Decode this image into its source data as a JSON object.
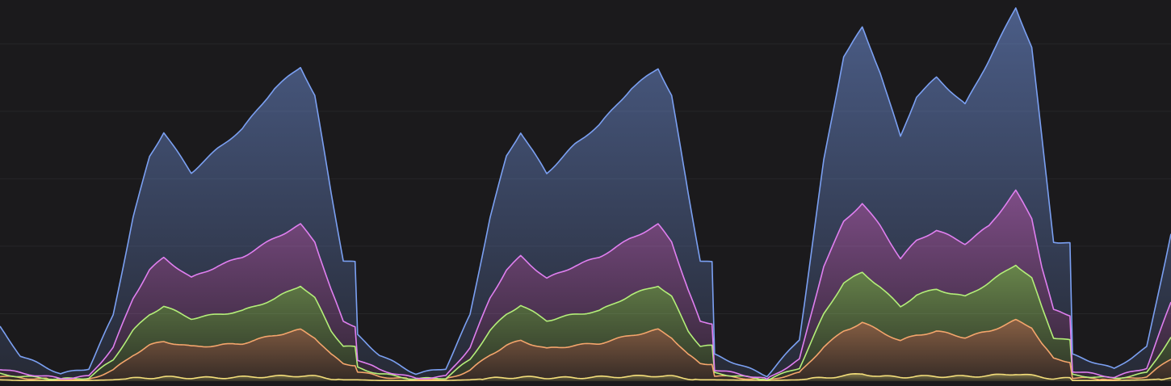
{
  "chart_data": {
    "type": "area",
    "stacked": true,
    "title": "",
    "xlabel": "",
    "ylabel": "",
    "grid": true,
    "legend": "none",
    "xlim": [
      0,
      3.281
    ],
    "ylim": [
      0,
      565
    ],
    "y_gridlines": [
      100,
      200,
      300,
      400,
      500
    ],
    "background": "#1b1a1c",
    "gridline_color": "#262628",
    "x": [
      0,
      0.057,
      0.17,
      0.249,
      0.317,
      0.373,
      0.419,
      0.459,
      0.536,
      0.611,
      0.679,
      0.769,
      0.842,
      0.882,
      0.928,
      0.962,
      0.995,
      1.002,
      1.063,
      1.165,
      1.249,
      1.317,
      1.373,
      1.419,
      1.459,
      1.532,
      1.611,
      1.679,
      1.769,
      1.844,
      1.882,
      1.928,
      1.962,
      1.995,
      2.002,
      2.149,
      2.24,
      2.308,
      2.364,
      2.416,
      2.466,
      2.523,
      2.568,
      2.624,
      2.704,
      2.771,
      2.846,
      2.891,
      2.919,
      2.952,
      2.998,
      3.005,
      3.122,
      3.213,
      3.281
    ],
    "series": [
      {
        "color": "#f3de7a",
        "values": [
          2,
          1,
          1,
          1,
          2,
          4,
          5,
          6,
          5,
          5,
          6,
          7,
          8,
          7,
          4,
          2,
          2,
          2,
          1,
          1,
          1,
          2,
          4,
          5,
          6,
          5,
          5,
          6,
          7,
          8,
          7,
          4,
          2,
          2,
          2,
          1,
          2,
          5,
          8,
          11,
          7,
          6,
          7,
          7,
          7,
          8,
          11,
          8,
          6,
          4,
          4,
          1,
          1,
          2,
          4
        ]
      },
      {
        "color": "#f4a56c",
        "values": [
          5,
          4,
          1,
          2,
          14,
          35,
          48,
          53,
          46,
          48,
          50,
          61,
          68,
          58,
          35,
          24,
          22,
          12,
          6,
          1,
          2,
          14,
          35,
          48,
          54,
          43,
          48,
          50,
          61,
          68,
          58,
          35,
          24,
          24,
          6,
          1,
          10,
          46,
          66,
          76,
          67,
          54,
          61,
          67,
          58,
          66,
          79,
          72,
          50,
          29,
          25,
          4,
          1,
          5,
          29
        ]
      },
      {
        "color": "#b4ef79",
        "values": [
          4,
          2,
          1,
          2,
          16,
          36,
          46,
          52,
          42,
          46,
          48,
          54,
          66,
          58,
          36,
          26,
          26,
          6,
          4,
          1,
          2,
          16,
          36,
          46,
          53,
          42,
          46,
          48,
          60,
          66,
          60,
          36,
          26,
          26,
          4,
          0,
          8,
          48,
          72,
          74,
          66,
          50,
          60,
          62,
          60,
          72,
          83,
          72,
          54,
          32,
          31,
          4,
          2,
          5,
          32
        ]
      },
      {
        "color": "#e07ff0",
        "values": [
          7,
          5,
          1,
          2,
          18,
          48,
          66,
          72,
          60,
          72,
          80,
          90,
          90,
          84,
          60,
          36,
          32,
          12,
          6,
          1,
          2,
          18,
          48,
          66,
          72,
          62,
          72,
          80,
          84,
          90,
          82,
          60,
          36,
          34,
          5,
          1,
          12,
          72,
          90,
          103,
          90,
          72,
          80,
          88,
          79,
          84,
          109,
          90,
          60,
          40,
          38,
          6,
          2,
          8,
          52
        ]
      },
      {
        "color": "#7ba0f2",
        "values": [
          62,
          26,
          7,
          12,
          48,
          120,
          168,
          186,
          156,
          174,
          190,
          222,
          234,
          216,
          144,
          91,
          94,
          36,
          22,
          7,
          12,
          48,
          120,
          168,
          184,
          156,
          180,
          196,
          222,
          232,
          216,
          144,
          91,
          90,
          22,
          5,
          30,
          156,
          246,
          260,
          228,
          180,
          214,
          226,
          206,
          246,
          272,
          252,
          192,
          102,
          106,
          24,
          12,
          30,
          102
        ]
      }
    ]
  }
}
